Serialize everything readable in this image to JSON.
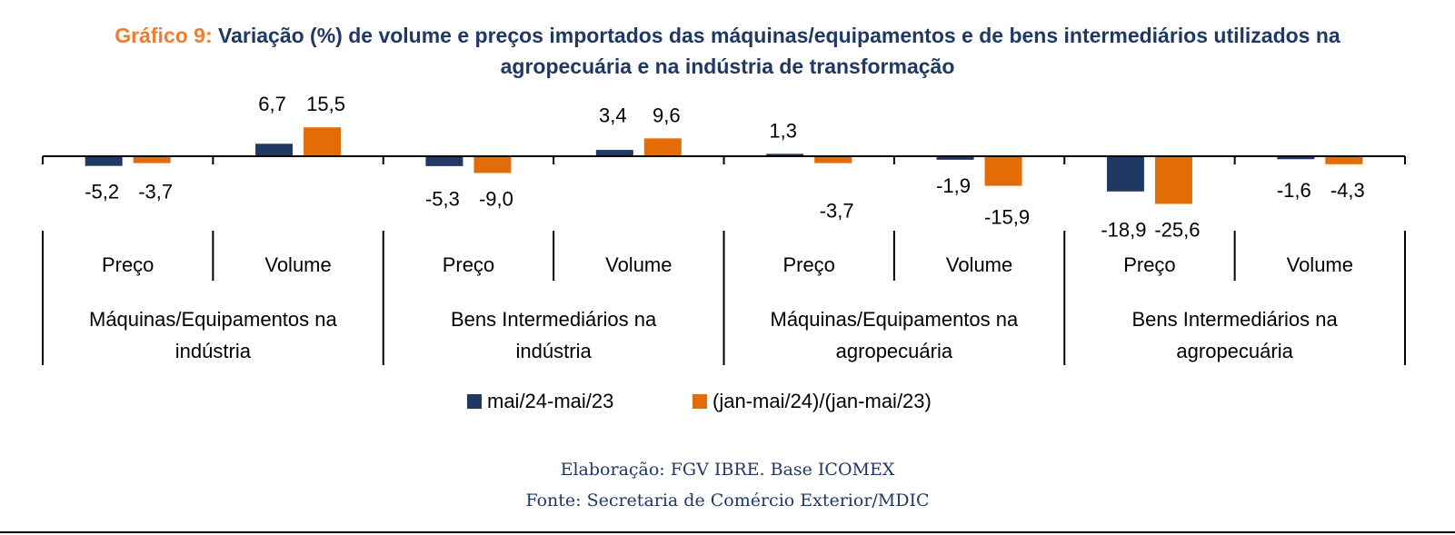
{
  "title_prefix": "Gráfico 9:",
  "title_line1": "Variação (%) de volume e preços importados das máquinas/equipamentos e de bens intermediários utilizados na",
  "title_line2": "agropecuária e na indústria de transformação",
  "chart_data": {
    "type": "bar",
    "groups": [
      {
        "label_lines": [
          "Máquinas/Equipamentos na",
          "indústria"
        ],
        "categories": [
          "Preço",
          "Volume"
        ]
      },
      {
        "label_lines": [
          "Bens Intermediários na",
          "indústria"
        ],
        "categories": [
          "Preço",
          "Volume"
        ]
      },
      {
        "label_lines": [
          "Máquinas/Equipamentos na",
          "agropecuária"
        ],
        "categories": [
          "Preço",
          "Volume"
        ]
      },
      {
        "label_lines": [
          "Bens Intermediários na",
          "agropecuária"
        ],
        "categories": [
          "Preço",
          "Volume"
        ]
      }
    ],
    "series": [
      {
        "name": "mai/24-mai/23",
        "color": "#1f3864",
        "values": [
          -5.2,
          6.7,
          -5.3,
          3.4,
          1.3,
          -1.9,
          -18.9,
          -1.6
        ],
        "labels": [
          "-5,2",
          "6,7",
          "-5,3",
          "3,4",
          "1,3",
          "-1,9",
          "-18,9",
          "-1,6"
        ]
      },
      {
        "name": "(jan-mai/24)/(jan-mai/23)",
        "color": "#e36c09",
        "values": [
          -3.7,
          15.5,
          -9.0,
          9.6,
          -3.7,
          -15.9,
          -25.6,
          -4.3
        ],
        "labels": [
          "-3,7",
          "15,5",
          "-9,0",
          "9,6",
          "-3,7",
          "-15,9",
          "-25,6",
          "-4,3"
        ]
      }
    ],
    "legend_position": "bottom",
    "grid": false
  },
  "footer": {
    "line1": "Elaboração: FGV IBRE. Base ICOMEX",
    "line2": "Fonte: Secretaria de Comércio Exterior/MDIC"
  }
}
